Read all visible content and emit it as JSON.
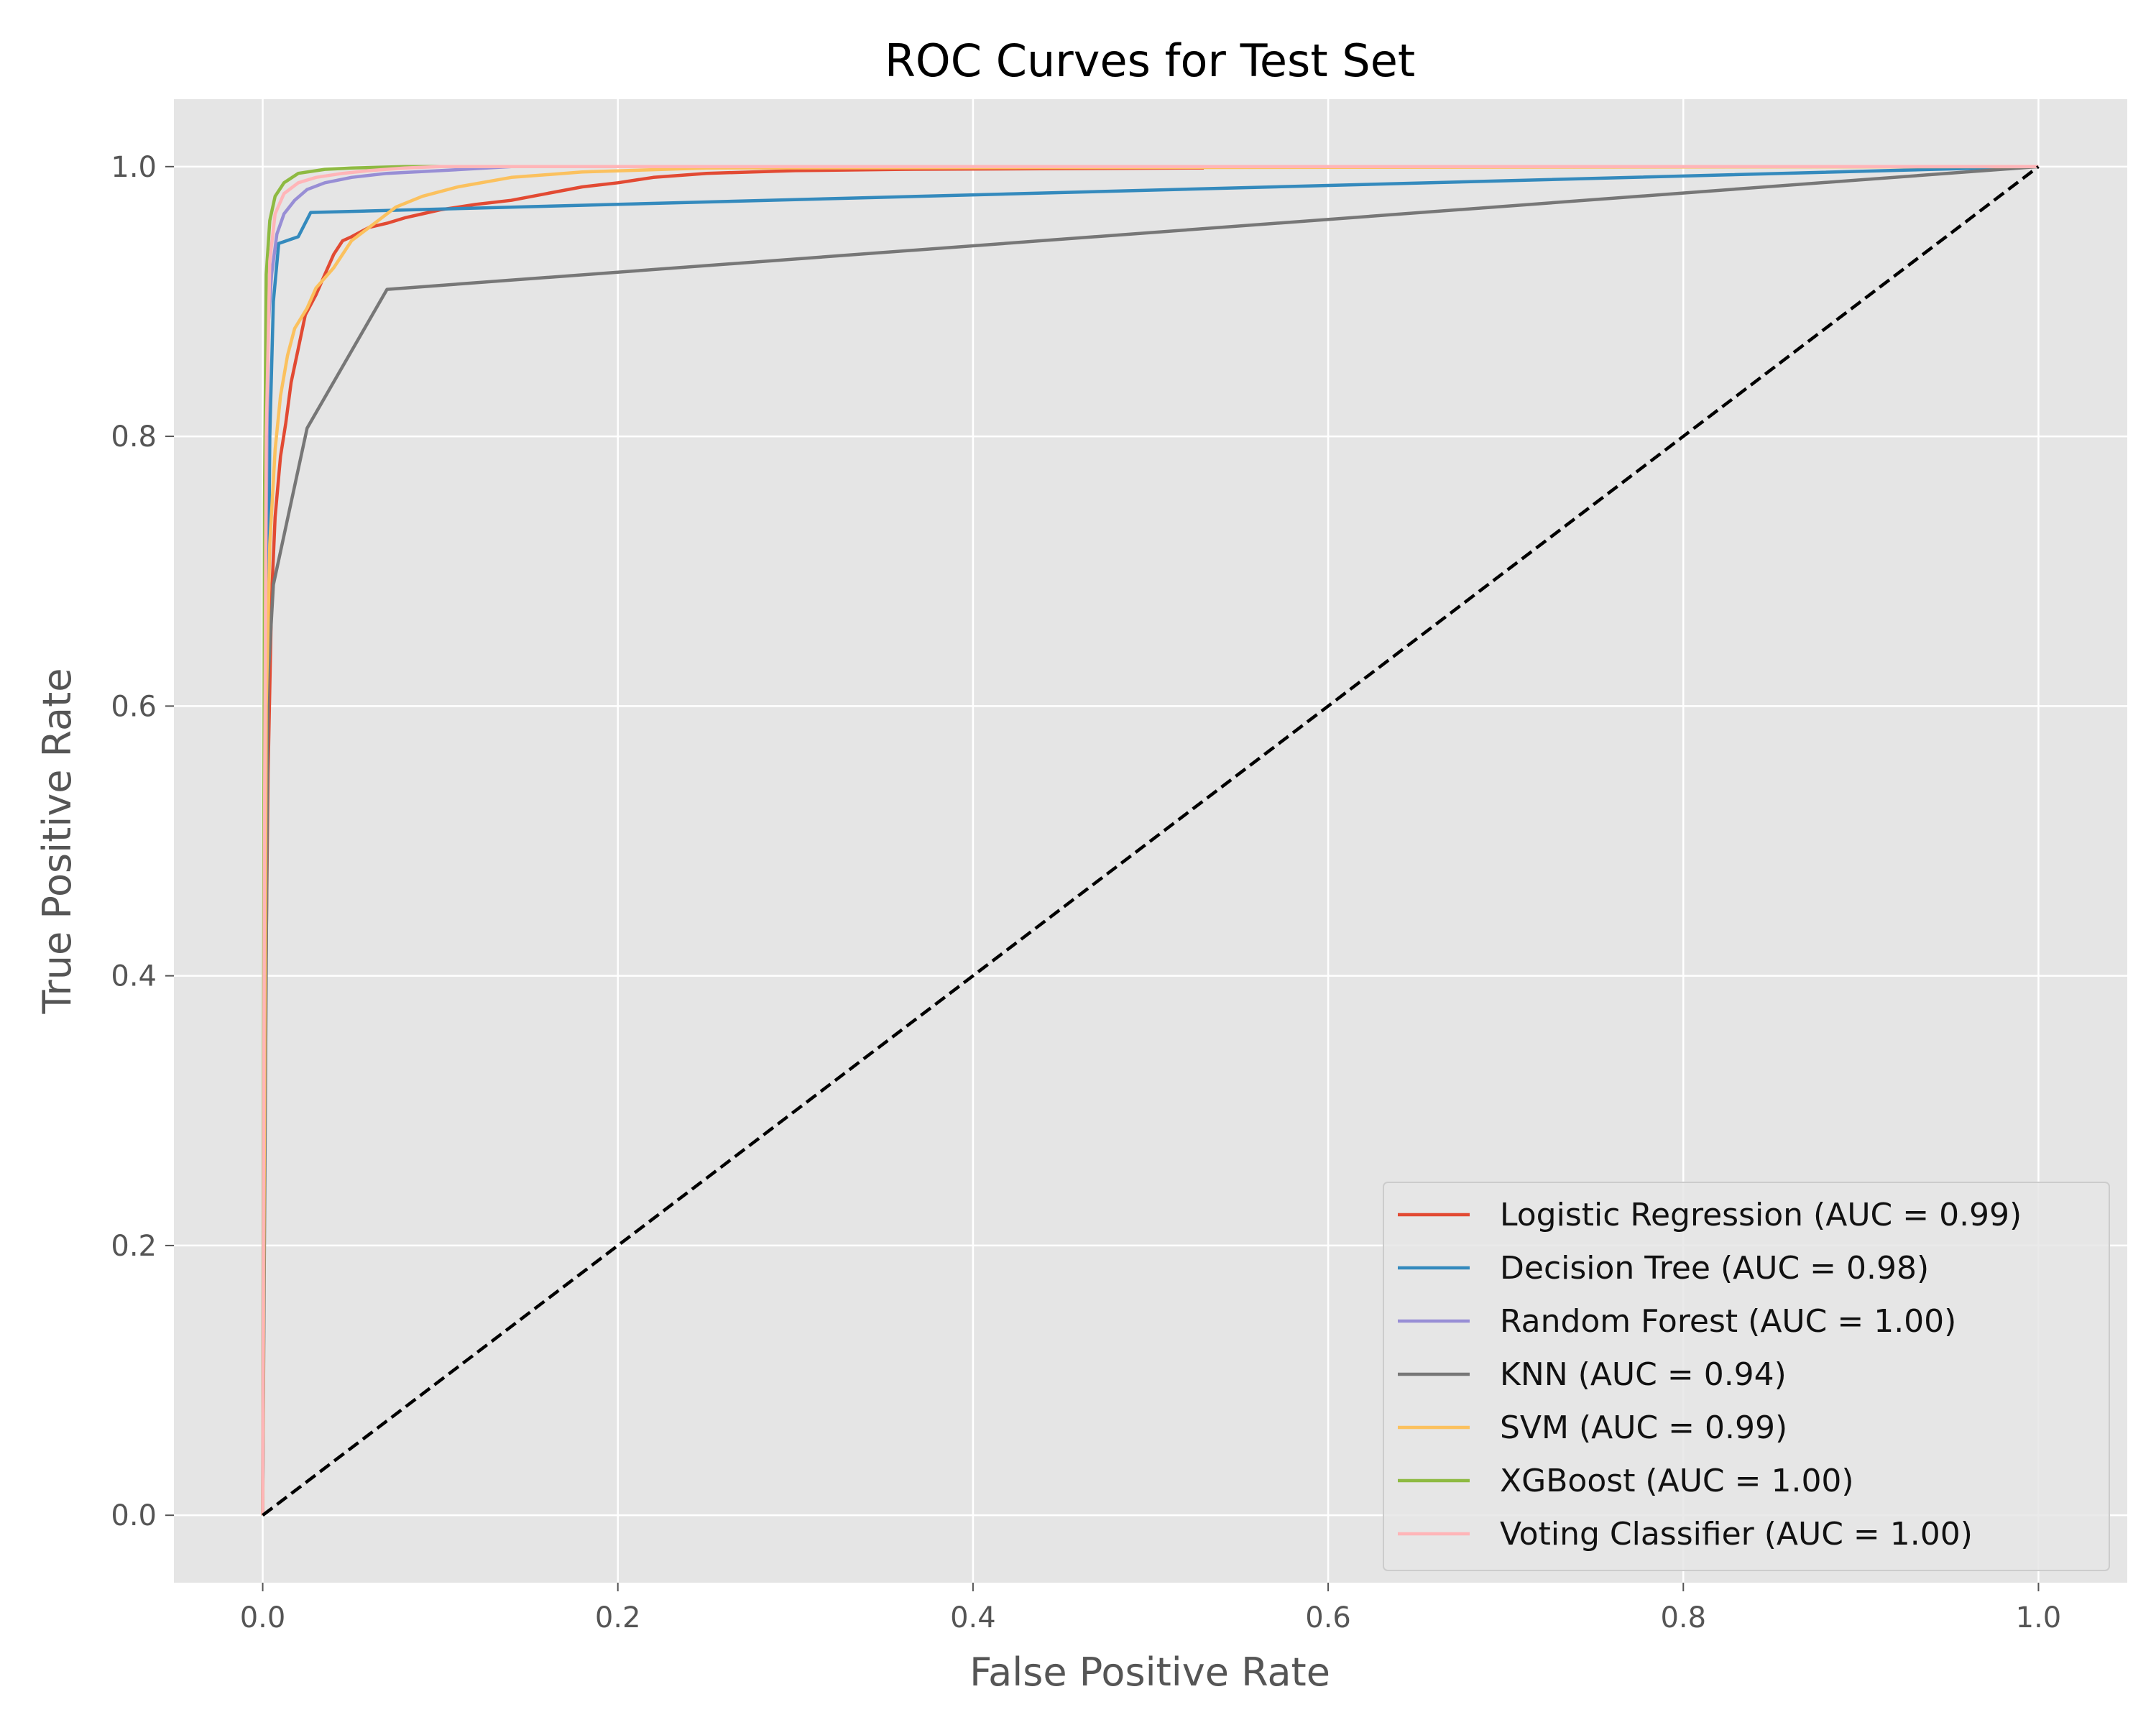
{
  "chart_data": {
    "type": "line",
    "title": "ROC Curves for Test Set",
    "xlabel": "False Positive Rate",
    "ylabel": "True Positive Rate",
    "xlim": [
      -0.05,
      1.05
    ],
    "ylim": [
      -0.05,
      1.05
    ],
    "xticks": [
      0.0,
      0.2,
      0.4,
      0.6,
      0.8,
      1.0
    ],
    "xtick_labels": [
      "0.0",
      "0.2",
      "0.4",
      "0.6",
      "0.8",
      "1.0"
    ],
    "yticks": [
      0.0,
      0.2,
      0.4,
      0.6,
      0.8,
      1.0
    ],
    "ytick_labels": [
      "0.0",
      "0.2",
      "0.4",
      "0.6",
      "0.8",
      "1.0"
    ],
    "grid": true,
    "legend_position": "lower-right",
    "background": "#e5e5e5",
    "series": [
      {
        "name": "Logistic Regression (AUC = 0.99)",
        "color": "#e24a33",
        "x": [
          0,
          0.001,
          0.003,
          0.005,
          0.007,
          0.01,
          0.013,
          0.016,
          0.02,
          0.024,
          0.03,
          0.035,
          0.04,
          0.045,
          0.05,
          0.06,
          0.07,
          0.08,
          0.09,
          0.1,
          0.12,
          0.14,
          0.16,
          0.18,
          0.2,
          0.22,
          0.25,
          0.3,
          0.36,
          0.53
        ],
        "y": [
          0,
          0.3,
          0.55,
          0.68,
          0.74,
          0.785,
          0.81,
          0.84,
          0.865,
          0.89,
          0.905,
          0.92,
          0.935,
          0.945,
          0.948,
          0.955,
          0.958,
          0.962,
          0.965,
          0.968,
          0.972,
          0.975,
          0.98,
          0.985,
          0.988,
          0.992,
          0.995,
          0.997,
          0.998,
          0.999
        ]
      },
      {
        "name": "Decision Tree (AUC = 0.98)",
        "color": "#348abd",
        "x": [
          0,
          0.002,
          0.004,
          0.006,
          0.009,
          0.02,
          0.027,
          1.0
        ],
        "y": [
          0,
          0.5,
          0.8,
          0.9,
          0.943,
          0.948,
          0.966,
          1.0
        ]
      },
      {
        "name": "Random Forest (AUC = 1.00)",
        "color": "#988ed5",
        "x": [
          0,
          0.001,
          0.003,
          0.005,
          0.008,
          0.012,
          0.018,
          0.025,
          0.035,
          0.05,
          0.07,
          0.1,
          0.14,
          1.0
        ],
        "y": [
          0,
          0.6,
          0.88,
          0.92,
          0.95,
          0.965,
          0.975,
          0.983,
          0.988,
          0.992,
          0.995,
          0.997,
          1.0,
          1.0
        ]
      },
      {
        "name": "KNN (AUC = 0.94)",
        "color": "#777777",
        "x": [
          0,
          0.003,
          0.006,
          0.025,
          0.07,
          1.0
        ],
        "y": [
          0,
          0.62,
          0.69,
          0.806,
          0.909,
          1.0
        ]
      },
      {
        "name": "SVM (AUC = 0.99)",
        "color": "#fbc15e",
        "x": [
          0,
          0.002,
          0.004,
          0.007,
          0.01,
          0.014,
          0.018,
          0.025,
          0.03,
          0.04,
          0.05,
          0.06,
          0.075,
          0.09,
          0.11,
          0.14,
          0.18,
          0.25,
          1.0
        ],
        "y": [
          0,
          0.6,
          0.72,
          0.79,
          0.83,
          0.86,
          0.88,
          0.895,
          0.91,
          0.925,
          0.945,
          0.955,
          0.97,
          0.978,
          0.985,
          0.992,
          0.996,
          0.999,
          1.0
        ]
      },
      {
        "name": "XGBoost (AUC = 1.00)",
        "color": "#8eba42",
        "x": [
          0,
          0.001,
          0.002,
          0.004,
          0.007,
          0.012,
          0.02,
          0.035,
          0.05,
          0.08,
          1.0
        ],
        "y": [
          0,
          0.75,
          0.92,
          0.96,
          0.978,
          0.988,
          0.995,
          0.998,
          0.999,
          1.0,
          1.0
        ]
      },
      {
        "name": "Voting Classifier (AUC = 1.00)",
        "color": "#ffb5b8",
        "x": [
          0,
          0.001,
          0.002,
          0.004,
          0.007,
          0.012,
          0.02,
          0.03,
          0.045,
          0.06,
          0.08,
          0.1,
          1.0
        ],
        "y": [
          0,
          0.5,
          0.8,
          0.93,
          0.965,
          0.98,
          0.988,
          0.992,
          0.995,
          0.997,
          0.999,
          1.0,
          1.0
        ]
      }
    ],
    "reference_line": {
      "x": [
        0,
        1
      ],
      "y": [
        0,
        1
      ],
      "color": "#000000",
      "style": "dashed"
    }
  }
}
